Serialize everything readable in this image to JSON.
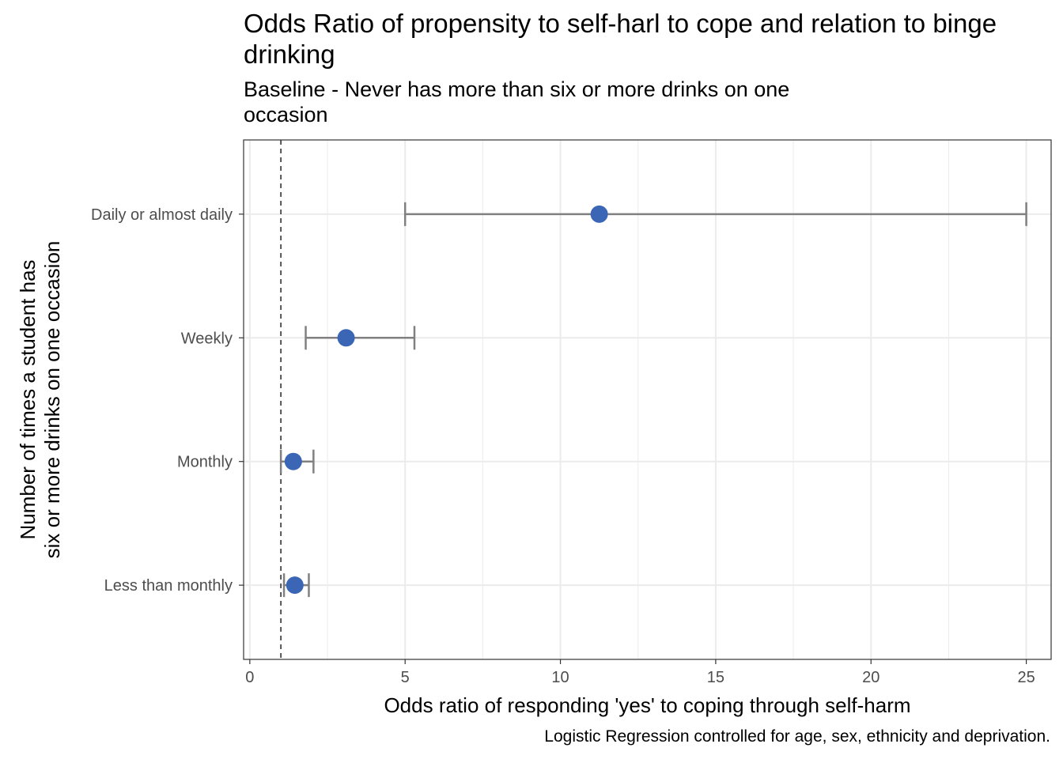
{
  "title": "Odds Ratio of propensity to self-harl to cope and relation to binge drinking",
  "subtitle": "Baseline - Never has more than six or more drinks on one occasion",
  "caption": "Logistic Regression controlled for age, sex, ethnicity and deprivation.",
  "chart_data": {
    "type": "scatter",
    "subtype": "forest-plot with error bars",
    "xlabel": "Odds ratio of responding 'yes' to coping through self-harm",
    "ylabel": "Number of times a student has six or more drinks on one occasion",
    "xlim": [
      -0.2,
      25.8
    ],
    "x_ticks": [
      0,
      5,
      10,
      15,
      20,
      25
    ],
    "reference_line": 1,
    "grid": true,
    "categories": [
      "Daily or almost daily",
      "Weekly",
      "Monthly",
      "Less than monthly"
    ],
    "series": [
      {
        "values": [
          11.25,
          3.1,
          1.4,
          1.45
        ],
        "lower": [
          5.0,
          1.8,
          1.0,
          1.1
        ],
        "upper": [
          25.0,
          5.3,
          2.05,
          1.9
        ]
      }
    ],
    "colors": {
      "point": "#3a66b5",
      "errorbar": "#808080",
      "reference": "#333333",
      "grid": "#ebebeb",
      "panel_border": "#333333"
    }
  }
}
